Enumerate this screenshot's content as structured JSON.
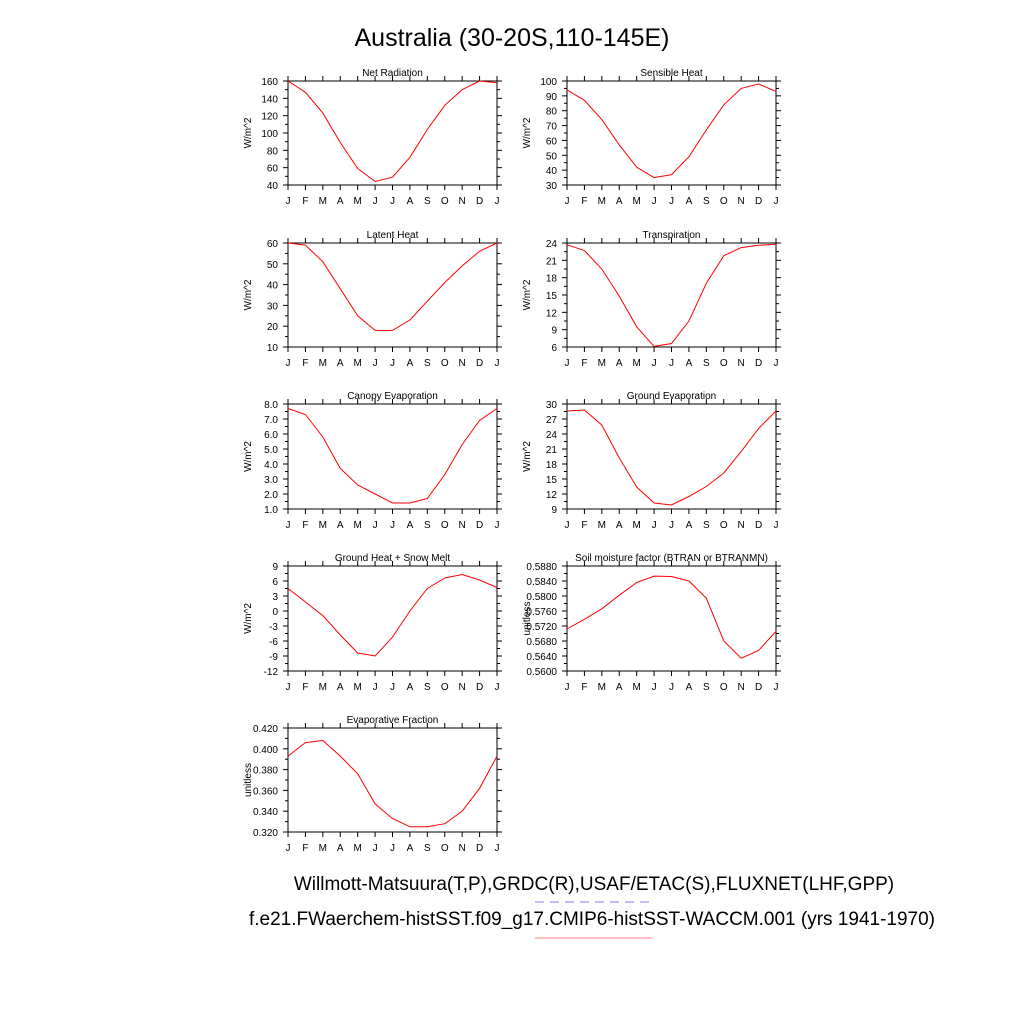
{
  "title": "Australia (30-20S,110-145E)",
  "footer": {
    "line1": "Willmott-Matsuura(T,P),GRDC(R),USAF/ETAC(S),FLUXNET(LHF,GPP)",
    "line2": "f.e21.FWaerchem-histSST.f09_g17.CMIP6-histSST-WACCM.001 (yrs 1941-1970)",
    "line1_underline_color": "#7b7bff",
    "line2_underline_color": "#ff7b7b"
  },
  "chart_data": [
    {
      "type": "line",
      "title": "Net Radiation",
      "ylabel": "W/m^2",
      "categories": [
        "J",
        "F",
        "M",
        "A",
        "M",
        "J",
        "J",
        "A",
        "S",
        "O",
        "N",
        "D",
        "J"
      ],
      "ylim": [
        40,
        160
      ],
      "yticks": [
        "40",
        "60",
        "80",
        "100",
        "120",
        "140",
        "160"
      ],
      "series": [
        {
          "color": "#ff0000",
          "values": [
            160,
            147,
            123,
            89,
            59,
            44,
            49,
            72,
            104,
            132,
            150,
            160,
            158
          ]
        }
      ]
    },
    {
      "type": "line",
      "title": "Sensible Heat",
      "ylabel": "W/m^2",
      "categories": [
        "J",
        "F",
        "M",
        "A",
        "M",
        "J",
        "J",
        "A",
        "S",
        "O",
        "N",
        "D",
        "J"
      ],
      "ylim": [
        30,
        100
      ],
      "yticks": [
        "30",
        "40",
        "50",
        "60",
        "70",
        "80",
        "90",
        "100"
      ],
      "series": [
        {
          "color": "#ff0000",
          "values": [
            94,
            87,
            74,
            57,
            42,
            35,
            37,
            49,
            67,
            84,
            95,
            98,
            93
          ]
        }
      ]
    },
    {
      "type": "line",
      "title": "Latent Heat",
      "ylabel": "W/m^2",
      "categories": [
        "J",
        "F",
        "M",
        "A",
        "M",
        "J",
        "J",
        "A",
        "S",
        "O",
        "N",
        "D",
        "J"
      ],
      "ylim": [
        10,
        60
      ],
      "yticks": [
        "10",
        "20",
        "30",
        "40",
        "50",
        "60"
      ],
      "series": [
        {
          "color": "#ff0000",
          "values": [
            60,
            59,
            51,
            38,
            25,
            18,
            18,
            23,
            32,
            41,
            49,
            56,
            60
          ]
        }
      ]
    },
    {
      "type": "line",
      "title": "Transpiration",
      "ylabel": "W/m^2",
      "categories": [
        "J",
        "F",
        "M",
        "A",
        "M",
        "J",
        "J",
        "A",
        "S",
        "O",
        "N",
        "D",
        "J"
      ],
      "ylim": [
        6,
        24
      ],
      "yticks": [
        "6",
        "9",
        "12",
        "15",
        "18",
        "21",
        "24"
      ],
      "series": [
        {
          "color": "#ff0000",
          "values": [
            23.7,
            22.7,
            19.5,
            14.8,
            9.5,
            6.1,
            6.6,
            10.5,
            17,
            21.8,
            23.2,
            23.6,
            23.8
          ]
        }
      ]
    },
    {
      "type": "line",
      "title": "Canopy Evaporation",
      "ylabel": "W/m^2",
      "categories": [
        "J",
        "F",
        "M",
        "A",
        "M",
        "J",
        "J",
        "A",
        "S",
        "O",
        "N",
        "D",
        "J"
      ],
      "ylim": [
        1,
        8
      ],
      "yticks": [
        "1.0",
        "2.0",
        "3.0",
        "4.0",
        "5.0",
        "6.0",
        "7.0",
        "8.0"
      ],
      "series": [
        {
          "color": "#ff0000",
          "values": [
            7.7,
            7.3,
            5.8,
            3.7,
            2.6,
            2.0,
            1.4,
            1.4,
            1.7,
            3.3,
            5.3,
            6.9,
            7.7
          ]
        }
      ]
    },
    {
      "type": "line",
      "title": "Ground Evaporation",
      "ylabel": "W/m^2",
      "categories": [
        "J",
        "F",
        "M",
        "A",
        "M",
        "J",
        "J",
        "A",
        "S",
        "O",
        "N",
        "D",
        "J"
      ],
      "ylim": [
        9,
        30
      ],
      "yticks": [
        "9",
        "12",
        "15",
        "18",
        "21",
        "24",
        "27",
        "30"
      ],
      "series": [
        {
          "color": "#ff0000",
          "values": [
            28.6,
            28.8,
            25.8,
            19.2,
            13.4,
            10.2,
            9.8,
            11.5,
            13.5,
            16.2,
            20.5,
            25.1,
            28.6
          ]
        }
      ]
    },
    {
      "type": "line",
      "title": "Ground Heat + Snow Melt",
      "ylabel": "W/m^2",
      "categories": [
        "J",
        "F",
        "M",
        "A",
        "M",
        "J",
        "J",
        "A",
        "S",
        "O",
        "N",
        "D",
        "J"
      ],
      "ylim": [
        -12,
        9
      ],
      "yticks": [
        "-12",
        "-9",
        "-6",
        "-3",
        "0",
        "3",
        "6",
        "9"
      ],
      "series": [
        {
          "color": "#ff0000",
          "values": [
            4.5,
            1.8,
            -0.9,
            -4.8,
            -8.4,
            -9.0,
            -5.2,
            0,
            4.5,
            6.6,
            7.3,
            6.2,
            4.7
          ]
        }
      ]
    },
    {
      "type": "line",
      "title": "Soil moisture factor (BTRAN or BTRANMN)",
      "ylabel": "unitless",
      "categories": [
        "J",
        "F",
        "M",
        "A",
        "M",
        "J",
        "J",
        "A",
        "S",
        "O",
        "N",
        "D",
        "J"
      ],
      "ylim": [
        0.56,
        0.588
      ],
      "yticks": [
        "0.5600",
        "0.5640",
        "0.5680",
        "0.5720",
        "0.5760",
        "0.5800",
        "0.5840",
        "0.5880"
      ],
      "series": [
        {
          "color": "#ff0000",
          "values": [
            0.5712,
            0.5738,
            0.5766,
            0.5802,
            0.5836,
            0.5853,
            0.5852,
            0.584,
            0.5794,
            0.568,
            0.5634,
            0.5655,
            0.5706
          ]
        }
      ]
    },
    {
      "type": "line",
      "title": "Evaporative Fraction",
      "ylabel": "unitless",
      "categories": [
        "J",
        "F",
        "M",
        "A",
        "M",
        "J",
        "J",
        "A",
        "S",
        "O",
        "N",
        "D",
        "J"
      ],
      "ylim": [
        0.32,
        0.42
      ],
      "yticks": [
        "0.320",
        "0.340",
        "0.360",
        "0.380",
        "0.400",
        "0.420"
      ],
      "series": [
        {
          "color": "#ff0000",
          "values": [
            0.393,
            0.406,
            0.408,
            0.393,
            0.376,
            0.347,
            0.333,
            0.325,
            0.325,
            0.328,
            0.34,
            0.362,
            0.393
          ]
        }
      ]
    }
  ]
}
